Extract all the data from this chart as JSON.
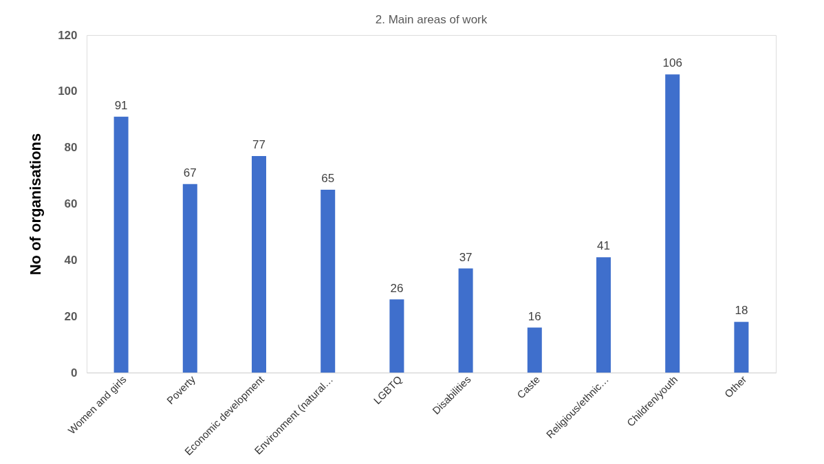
{
  "chart_data": {
    "type": "bar",
    "title": "2. Main areas of work",
    "ylabel": "No of organisations",
    "categories": [
      "Women and girls",
      "Poverty",
      "Economic development",
      "Environment (natural…",
      "LGBTQ",
      "Disabilities",
      "Caste",
      "Religious/ethnic…",
      "Children/youth",
      "Other"
    ],
    "values": [
      91,
      67,
      77,
      65,
      26,
      37,
      16,
      41,
      106,
      18
    ],
    "color": "#3f6fcc",
    "ylim": [
      0,
      120
    ],
    "yticks": [
      0,
      20,
      40,
      60,
      80,
      100,
      120
    ],
    "grid": false,
    "data_labels": true
  }
}
